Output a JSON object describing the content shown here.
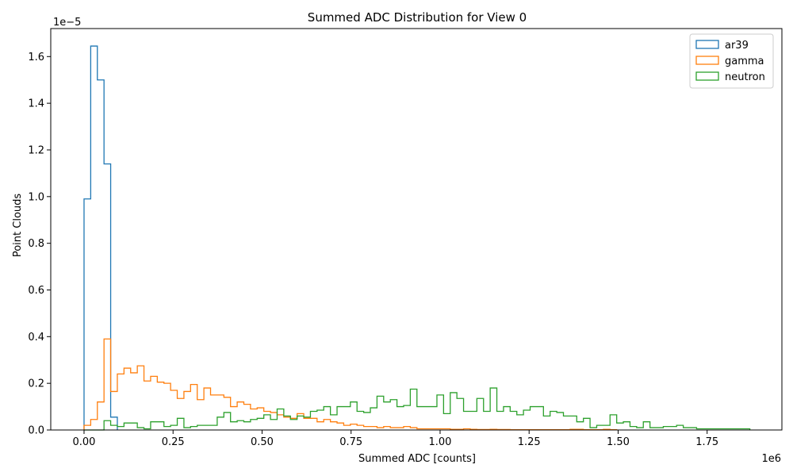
{
  "chart_data": {
    "type": "histogram",
    "title": "Summed ADC Distribution for View 0",
    "xlabel": "Summed ADC [counts]",
    "ylabel": "Point Clouds",
    "x_offset_label": "1e6",
    "y_offset_label": "1e−5",
    "x_scale": 1000000,
    "y_scale": 1e-05,
    "xlim": [
      -0.0935,
      1.96
    ],
    "ylim": [
      0,
      1.72
    ],
    "xticks": [
      "0.00",
      "0.25",
      "0.50",
      "0.75",
      "1.00",
      "1.25",
      "1.50",
      "1.75"
    ],
    "xtick_values": [
      0,
      0.25,
      0.5,
      0.75,
      1.0,
      1.25,
      1.5,
      1.75
    ],
    "yticks": [
      "0.0",
      "0.2",
      "0.4",
      "0.6",
      "0.8",
      "1.0",
      "1.2",
      "1.4",
      "1.6"
    ],
    "ytick_values": [
      0,
      0.2,
      0.4,
      0.6,
      0.8,
      1.0,
      1.2,
      1.4,
      1.6
    ],
    "legend_position": "top-right",
    "grid": false,
    "series": [
      {
        "name": "ar39",
        "color": "#1f77b4",
        "bin_edges": [
          0.0,
          0.0187,
          0.0374,
          0.0561,
          0.0748,
          0.0935
        ],
        "values": [
          0.99,
          1.645,
          1.5,
          1.14,
          0.055
        ]
      },
      {
        "name": "gamma",
        "color": "#ff7f0e",
        "bin_start": 0.0,
        "bin_width": 0.0187,
        "values": [
          0.02,
          0.045,
          0.12,
          0.39,
          0.165,
          0.24,
          0.265,
          0.245,
          0.275,
          0.21,
          0.23,
          0.205,
          0.2,
          0.17,
          0.135,
          0.165,
          0.195,
          0.13,
          0.18,
          0.15,
          0.15,
          0.14,
          0.1,
          0.12,
          0.11,
          0.09,
          0.095,
          0.08,
          0.075,
          0.065,
          0.055,
          0.05,
          0.07,
          0.05,
          0.05,
          0.035,
          0.045,
          0.035,
          0.03,
          0.02,
          0.025,
          0.02,
          0.015,
          0.015,
          0.01,
          0.015,
          0.01,
          0.01,
          0.015,
          0.01,
          0.005,
          0.005,
          0.005,
          0.005,
          0.005,
          0.003,
          0.003,
          0.005,
          0.003,
          0.002,
          0.002,
          0.003,
          0.002,
          0.002,
          0.001,
          0.001,
          0.001,
          0.001,
          0.001,
          0.001,
          0.001,
          0.001,
          0.001,
          0.003,
          0.003,
          0.001,
          0.001,
          0.001,
          0.003,
          0.001
        ]
      },
      {
        "name": "neutron",
        "color": "#2ca02c",
        "bin_start": 0.0,
        "bin_width": 0.0187,
        "values": [
          0.0,
          0.0,
          0.0,
          0.04,
          0.02,
          0.015,
          0.03,
          0.03,
          0.01,
          0.005,
          0.035,
          0.035,
          0.015,
          0.02,
          0.05,
          0.01,
          0.015,
          0.02,
          0.02,
          0.02,
          0.055,
          0.075,
          0.035,
          0.04,
          0.035,
          0.045,
          0.05,
          0.065,
          0.045,
          0.09,
          0.06,
          0.045,
          0.06,
          0.055,
          0.08,
          0.085,
          0.1,
          0.065,
          0.1,
          0.1,
          0.12,
          0.08,
          0.075,
          0.095,
          0.145,
          0.12,
          0.13,
          0.1,
          0.105,
          0.175,
          0.1,
          0.1,
          0.1,
          0.15,
          0.07,
          0.16,
          0.135,
          0.08,
          0.08,
          0.135,
          0.08,
          0.18,
          0.08,
          0.1,
          0.08,
          0.065,
          0.085,
          0.1,
          0.1,
          0.06,
          0.08,
          0.075,
          0.06,
          0.06,
          0.035,
          0.05,
          0.01,
          0.02,
          0.02,
          0.065,
          0.03,
          0.035,
          0.015,
          0.01,
          0.035,
          0.01,
          0.01,
          0.015,
          0.015,
          0.02,
          0.01,
          0.01,
          0.005,
          0.005,
          0.005,
          0.005,
          0.005,
          0.005,
          0.005,
          0.005
        ]
      }
    ]
  }
}
